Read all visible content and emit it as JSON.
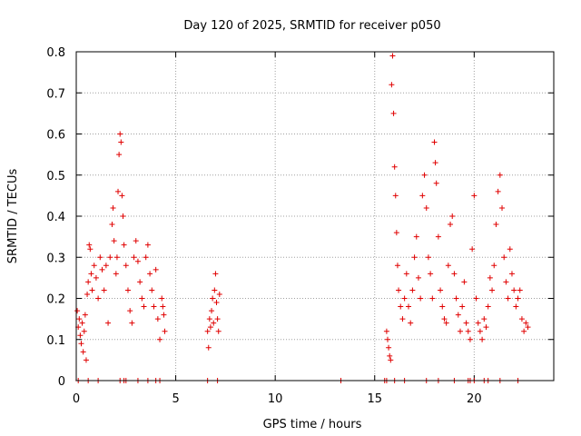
{
  "chart_data": {
    "type": "scatter",
    "title": "Day 120 of 2025, SRMTID for receiver p050",
    "xlabel": "GPS time / hours",
    "ylabel": "SRMTID / TECUs",
    "xlim": [
      0,
      24
    ],
    "ylim": [
      0,
      0.8
    ],
    "xticks": [
      0,
      5,
      10,
      15,
      20
    ],
    "xtick_labels": [
      "0",
      "5",
      "10",
      "15",
      "20"
    ],
    "yticks": [
      0,
      0.1,
      0.2,
      0.3,
      0.4,
      0.5,
      0.6,
      0.7,
      0.8
    ],
    "ytick_labels": [
      "0",
      "0.1",
      "0.2",
      "0.3",
      "0.4",
      "0.5",
      "0.6",
      "0.7",
      "0.8"
    ],
    "grid": true,
    "marker": "+",
    "color": "#e00000",
    "series": [
      {
        "name": "SRMTID p050",
        "points": [
          [
            0.05,
            0.17
          ],
          [
            0.1,
            0.13
          ],
          [
            0.15,
            0.15
          ],
          [
            0.2,
            0.11
          ],
          [
            0.25,
            0.09
          ],
          [
            0.3,
            0.14
          ],
          [
            0.35,
            0.07
          ],
          [
            0.4,
            0.12
          ],
          [
            0.45,
            0.16
          ],
          [
            0.5,
            0.05
          ],
          [
            0.55,
            0.21
          ],
          [
            0.6,
            0.24
          ],
          [
            0.65,
            0.33
          ],
          [
            0.7,
            0.32
          ],
          [
            0.75,
            0.26
          ],
          [
            0.8,
            0.22
          ],
          [
            0.9,
            0.28
          ],
          [
            1.0,
            0.25
          ],
          [
            1.1,
            0.2
          ],
          [
            1.2,
            0.3
          ],
          [
            1.3,
            0.27
          ],
          [
            1.4,
            0.22
          ],
          [
            1.5,
            0.28
          ],
          [
            1.6,
            0.14
          ],
          [
            1.7,
            0.3
          ],
          [
            1.8,
            0.38
          ],
          [
            1.85,
            0.42
          ],
          [
            1.9,
            0.34
          ],
          [
            2.0,
            0.26
          ],
          [
            2.05,
            0.3
          ],
          [
            2.1,
            0.46
          ],
          [
            2.15,
            0.55
          ],
          [
            2.2,
            0.6
          ],
          [
            2.25,
            0.58
          ],
          [
            2.3,
            0.45
          ],
          [
            2.35,
            0.4
          ],
          [
            2.4,
            0.33
          ],
          [
            2.5,
            0.28
          ],
          [
            2.6,
            0.22
          ],
          [
            2.7,
            0.17
          ],
          [
            2.8,
            0.14
          ],
          [
            2.9,
            0.3
          ],
          [
            3.0,
            0.34
          ],
          [
            3.1,
            0.29
          ],
          [
            3.2,
            0.24
          ],
          [
            3.3,
            0.2
          ],
          [
            3.4,
            0.18
          ],
          [
            3.5,
            0.3
          ],
          [
            3.6,
            0.33
          ],
          [
            3.7,
            0.26
          ],
          [
            3.8,
            0.22
          ],
          [
            3.9,
            0.18
          ],
          [
            4.0,
            0.27
          ],
          [
            4.1,
            0.15
          ],
          [
            4.2,
            0.1
          ],
          [
            4.3,
            0.2
          ],
          [
            4.35,
            0.18
          ],
          [
            4.4,
            0.16
          ],
          [
            4.45,
            0.12
          ],
          [
            6.6,
            0.12
          ],
          [
            6.65,
            0.08
          ],
          [
            6.7,
            0.15
          ],
          [
            6.75,
            0.13
          ],
          [
            6.8,
            0.17
          ],
          [
            6.85,
            0.2
          ],
          [
            6.9,
            0.14
          ],
          [
            6.95,
            0.22
          ],
          [
            7.0,
            0.26
          ],
          [
            7.05,
            0.19
          ],
          [
            7.1,
            0.15
          ],
          [
            7.15,
            0.12
          ],
          [
            7.2,
            0.21
          ],
          [
            15.6,
            0.12
          ],
          [
            15.65,
            0.1
          ],
          [
            15.7,
            0.08
          ],
          [
            15.75,
            0.06
          ],
          [
            15.8,
            0.05
          ],
          [
            15.85,
            0.72
          ],
          [
            15.9,
            0.79
          ],
          [
            15.95,
            0.65
          ],
          [
            16.0,
            0.52
          ],
          [
            16.05,
            0.45
          ],
          [
            16.1,
            0.36
          ],
          [
            16.15,
            0.28
          ],
          [
            16.2,
            0.22
          ],
          [
            16.3,
            0.18
          ],
          [
            16.4,
            0.15
          ],
          [
            16.5,
            0.2
          ],
          [
            16.6,
            0.26
          ],
          [
            16.7,
            0.18
          ],
          [
            16.8,
            0.14
          ],
          [
            16.9,
            0.22
          ],
          [
            17.0,
            0.3
          ],
          [
            17.1,
            0.35
          ],
          [
            17.2,
            0.25
          ],
          [
            17.3,
            0.2
          ],
          [
            17.4,
            0.45
          ],
          [
            17.5,
            0.5
          ],
          [
            17.6,
            0.42
          ],
          [
            17.7,
            0.3
          ],
          [
            17.8,
            0.26
          ],
          [
            17.9,
            0.2
          ],
          [
            18.0,
            0.58
          ],
          [
            18.05,
            0.53
          ],
          [
            18.1,
            0.48
          ],
          [
            18.2,
            0.35
          ],
          [
            18.3,
            0.22
          ],
          [
            18.4,
            0.18
          ],
          [
            18.5,
            0.15
          ],
          [
            18.6,
            0.14
          ],
          [
            18.7,
            0.28
          ],
          [
            18.8,
            0.38
          ],
          [
            18.9,
            0.4
          ],
          [
            19.0,
            0.26
          ],
          [
            19.1,
            0.2
          ],
          [
            19.2,
            0.16
          ],
          [
            19.3,
            0.12
          ],
          [
            19.4,
            0.18
          ],
          [
            19.5,
            0.24
          ],
          [
            19.6,
            0.14
          ],
          [
            19.7,
            0.12
          ],
          [
            19.8,
            0.1
          ],
          [
            19.9,
            0.32
          ],
          [
            20.0,
            0.45
          ],
          [
            20.1,
            0.2
          ],
          [
            20.2,
            0.14
          ],
          [
            20.3,
            0.12
          ],
          [
            20.4,
            0.1
          ],
          [
            20.5,
            0.15
          ],
          [
            20.6,
            0.13
          ],
          [
            20.7,
            0.18
          ],
          [
            20.8,
            0.25
          ],
          [
            20.9,
            0.22
          ],
          [
            21.0,
            0.28
          ],
          [
            21.1,
            0.38
          ],
          [
            21.2,
            0.46
          ],
          [
            21.3,
            0.5
          ],
          [
            21.4,
            0.42
          ],
          [
            21.5,
            0.3
          ],
          [
            21.6,
            0.24
          ],
          [
            21.7,
            0.2
          ],
          [
            21.8,
            0.32
          ],
          [
            21.9,
            0.26
          ],
          [
            22.0,
            0.22
          ],
          [
            22.1,
            0.18
          ],
          [
            22.2,
            0.2
          ],
          [
            22.3,
            0.22
          ],
          [
            22.4,
            0.15
          ],
          [
            22.5,
            0.12
          ],
          [
            22.6,
            0.14
          ],
          [
            22.7,
            0.13
          ],
          [
            0.1,
            0.0
          ],
          [
            0.6,
            0.0
          ],
          [
            1.1,
            0.0
          ],
          [
            2.2,
            0.0
          ],
          [
            2.4,
            0.0
          ],
          [
            2.5,
            0.0
          ],
          [
            3.1,
            0.0
          ],
          [
            3.6,
            0.0
          ],
          [
            4.0,
            0.0
          ],
          [
            4.2,
            0.0
          ],
          [
            6.6,
            0.0
          ],
          [
            7.1,
            0.0
          ],
          [
            13.3,
            0.0
          ],
          [
            15.5,
            0.0
          ],
          [
            15.6,
            0.0
          ],
          [
            16.0,
            0.0
          ],
          [
            16.5,
            0.0
          ],
          [
            17.6,
            0.0
          ],
          [
            18.2,
            0.0
          ],
          [
            19.0,
            0.0
          ],
          [
            19.7,
            0.0
          ],
          [
            19.8,
            0.0
          ],
          [
            20.0,
            0.0
          ],
          [
            20.5,
            0.0
          ],
          [
            20.7,
            0.0
          ],
          [
            21.3,
            0.0
          ],
          [
            22.2,
            0.0
          ]
        ]
      }
    ]
  }
}
